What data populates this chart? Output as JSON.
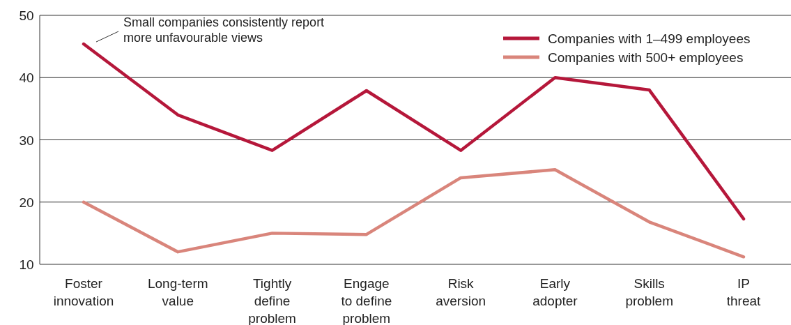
{
  "chart_data": {
    "type": "line",
    "categories": [
      "Foster\ninnovation",
      "Long-term\nvalue",
      "Tightly\ndefine\nproblem",
      "Engage\nto define\nproblem",
      "Risk\naversion",
      "Early\nadopter",
      "Skills\nproblem",
      "IP\nthreat"
    ],
    "series": [
      {
        "name": "Companies with 1–499 employees",
        "color": "#b5173a",
        "values": [
          45.4,
          34,
          28.3,
          37.9,
          28.3,
          40,
          38,
          17.3
        ]
      },
      {
        "name": "Companies with 500+ employees",
        "color": "#d9857b",
        "values": [
          20,
          12,
          15,
          14.8,
          23.9,
          25.2,
          16.8,
          11.2
        ]
      }
    ],
    "ylim": [
      10,
      50
    ],
    "yticks": [
      10,
      20,
      30,
      40,
      50
    ],
    "grid": "y",
    "legend": "top right",
    "marker": "none",
    "line_style": "solid",
    "annotations": [
      "Small companies consistently report\nmore unfavourable views"
    ]
  }
}
